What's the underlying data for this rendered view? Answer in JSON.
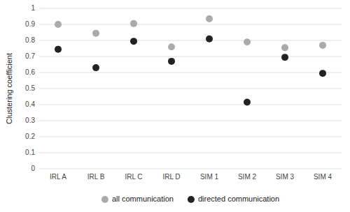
{
  "chart_data": {
    "type": "scatter",
    "categories": [
      "IRL A",
      "IRL B",
      "IRL C",
      "IRL D",
      "SIM 1",
      "SIM 2",
      "SIM 3",
      "SIM 4"
    ],
    "series": [
      {
        "name": "all communication",
        "color": "#aaaaaa",
        "marker": "circle",
        "values": [
          0.9,
          0.845,
          0.905,
          0.76,
          0.935,
          0.79,
          0.755,
          0.77
        ]
      },
      {
        "name": "directed communication",
        "color": "#222222",
        "marker": "circle",
        "values": [
          0.745,
          0.63,
          0.795,
          0.67,
          0.81,
          0.415,
          0.695,
          0.595
        ]
      }
    ],
    "ylabel": "Clustering coefficient",
    "ylim": [
      0,
      1.0
    ],
    "yticks": [
      0,
      0.1,
      0.2,
      0.3,
      0.4,
      0.5,
      0.6,
      0.7,
      0.8,
      0.9,
      1
    ],
    "grid": true,
    "legend": "bottom"
  }
}
